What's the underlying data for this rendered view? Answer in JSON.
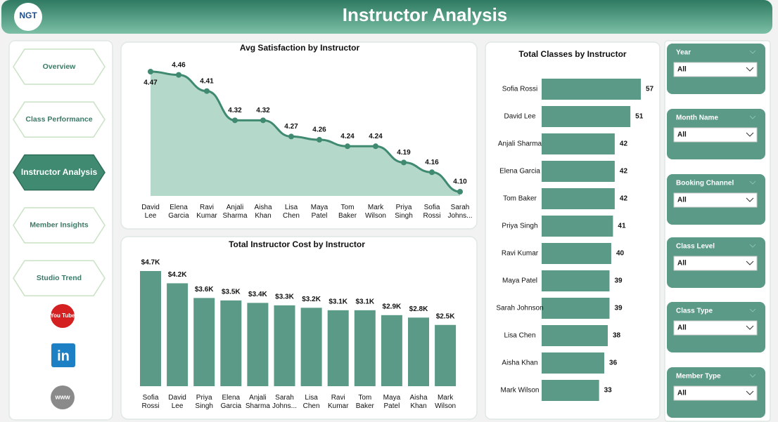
{
  "header": {
    "title": "Instructor Analysis",
    "logo": "NGT"
  },
  "nav": {
    "items": [
      "Overview",
      "Class Performance",
      "Instructor Analysis",
      "Member Insights",
      "Studio Trend"
    ],
    "active": 2
  },
  "icons": [
    "You Tube",
    "in",
    "www"
  ],
  "filters": [
    {
      "label": "Year",
      "value": "All"
    },
    {
      "label": "Month Name",
      "value": "All"
    },
    {
      "label": "Booking Channel",
      "value": "All"
    },
    {
      "label": "Class Level",
      "value": "All"
    },
    {
      "label": "Class Type",
      "value": "All"
    },
    {
      "label": "Member Type",
      "value": "All"
    }
  ],
  "chart_data": [
    {
      "type": "area",
      "title": "Avg Satisfaction by Instructor",
      "color": "#3f8a70",
      "categories": [
        "David Lee",
        "Elena Garcia",
        "Ravi Kumar",
        "Anjali Sharma",
        "Aisha Khan",
        "Lisa Chen",
        "Maya Patel",
        "Tom Baker",
        "Mark Wilson",
        "Priya Singh",
        "Sofia Rossi",
        "Sarah Johns..."
      ],
      "values": [
        4.47,
        4.46,
        4.41,
        4.32,
        4.32,
        4.27,
        4.26,
        4.24,
        4.24,
        4.19,
        4.16,
        4.1
      ],
      "value_labels": [
        "4.47",
        "4.46",
        "4.41",
        "4.32",
        "4.32",
        "4.27",
        "4.26",
        "4.24",
        "4.24",
        "4.19",
        "4.16",
        "4.10"
      ]
    },
    {
      "type": "bar",
      "title": "Total Instructor Cost by Instructor",
      "color": "#5a9a86",
      "categories": [
        "Sofia Rossi",
        "David Lee",
        "Priya Singh",
        "Elena Garcia",
        "Anjali Sharma",
        "Sarah Johns...",
        "Lisa Chen",
        "Ravi Kumar",
        "Tom Baker",
        "Maya Patel",
        "Aisha Khan",
        "Mark Wilson"
      ],
      "values": [
        4700,
        4200,
        3600,
        3500,
        3400,
        3300,
        3200,
        3100,
        3100,
        2900,
        2800,
        2500
      ],
      "value_labels": [
        "$4.7K",
        "$4.2K",
        "$3.6K",
        "$3.5K",
        "$3.4K",
        "$3.3K",
        "$3.2K",
        "$3.1K",
        "$3.1K",
        "$2.9K",
        "$2.8K",
        "$2.5K"
      ]
    },
    {
      "type": "hbar",
      "title": "Total Classes by Instructor",
      "color": "#5a9a86",
      "categories": [
        "Sofia Rossi",
        "David Lee",
        "Anjali Sharma",
        "Elena Garcia",
        "Tom Baker",
        "Priya Singh",
        "Ravi Kumar",
        "Maya Patel",
        "Sarah Johnson",
        "Lisa Chen",
        "Aisha Khan",
        "Mark Wilson"
      ],
      "values": [
        57,
        51,
        42,
        42,
        42,
        41,
        40,
        39,
        39,
        38,
        36,
        33
      ]
    }
  ]
}
